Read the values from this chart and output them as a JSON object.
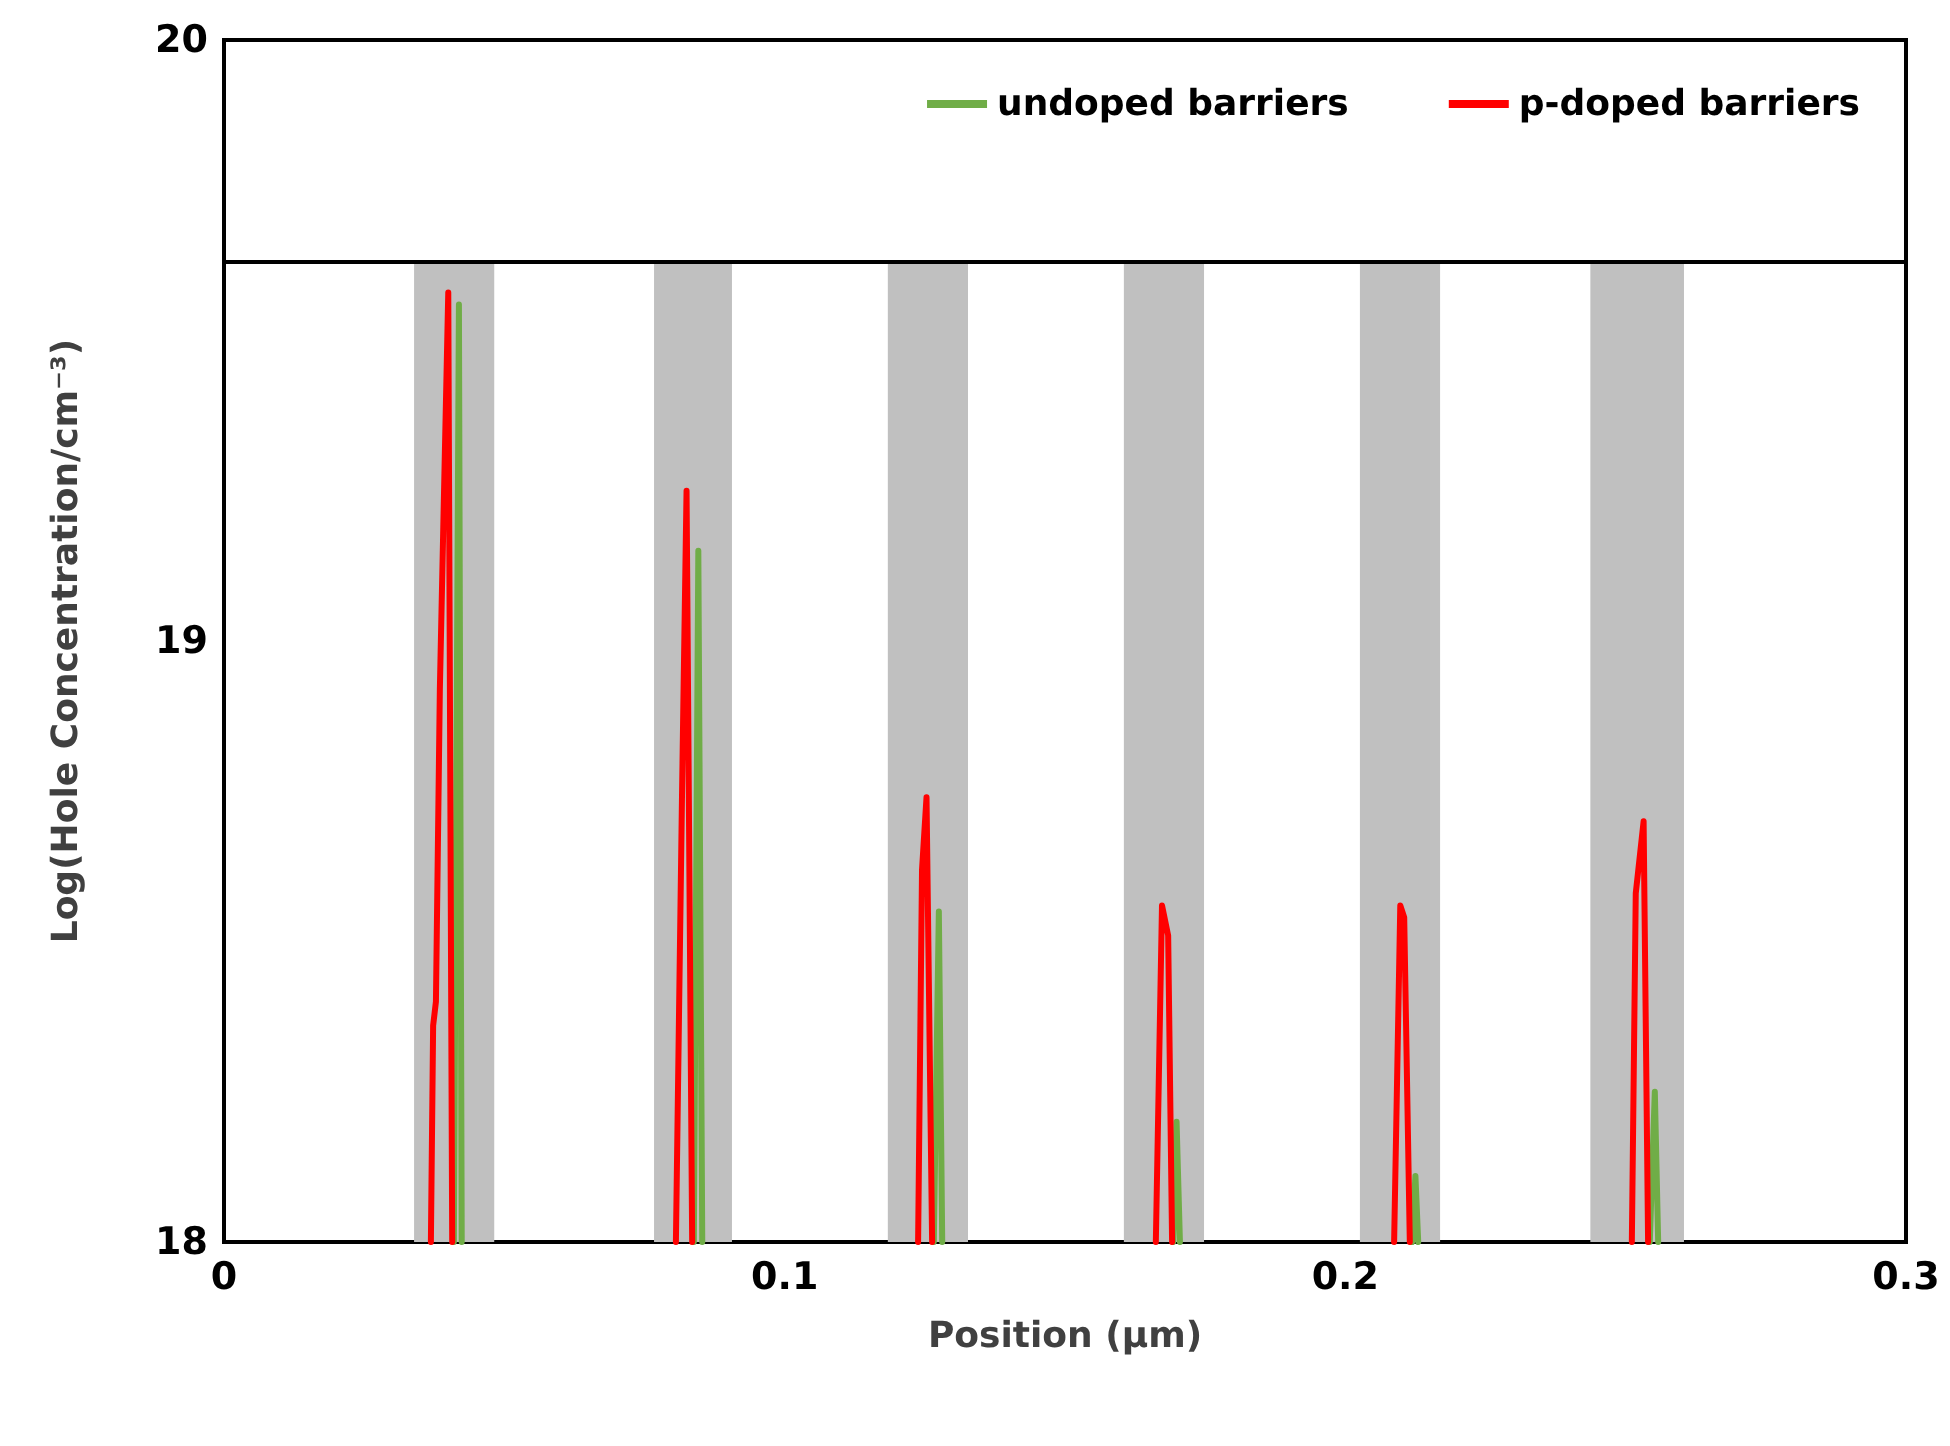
{
  "chart_data": {
    "type": "line",
    "xlabel": "Position (µm)",
    "ylabel": "Log(Hole Concentration/cm⁻³)",
    "xlim": [
      0,
      0.3
    ],
    "xticks": [
      0,
      0.1,
      0.2,
      0.3
    ],
    "ylim": [
      18,
      20
    ],
    "yticks": [
      18,
      19,
      20
    ],
    "grid": false,
    "legend": "top right",
    "marker": "none",
    "line_style": "solid",
    "series": [
      {
        "name": "undoped barriers",
        "color": "#70ad47",
        "x": [
          0.041,
          0.0419,
          0.0424,
          0.063,
          0.0838,
          0.0846,
          0.0853,
          0.105,
          0.1266,
          0.1275,
          0.1281,
          0.147,
          0.1693,
          0.1699,
          0.1705,
          0.19,
          0.2119,
          0.2125,
          0.213,
          0.233,
          0.2543,
          0.2552,
          0.2558
        ],
        "values": [
          18,
          19.56,
          18,
          null,
          18,
          19.15,
          18,
          null,
          18,
          18.55,
          18,
          null,
          18,
          18.2,
          18,
          null,
          18,
          18.11,
          18,
          null,
          18,
          18.25,
          18
        ]
      },
      {
        "name": "p-doped barriers",
        "color": "#ff0000",
        "x": [
          0.0369,
          0.0373,
          0.0378,
          0.0385,
          0.04,
          0.0407,
          0.062,
          0.0806,
          0.0817,
          0.0825,
          0.0835,
          0.104,
          0.1238,
          0.1245,
          0.1253,
          0.1263,
          0.146,
          0.1662,
          0.1673,
          0.1684,
          0.1691,
          0.19,
          0.2087,
          0.2098,
          0.2105,
          0.2115,
          0.232,
          0.2511,
          0.2518,
          0.2532,
          0.254
        ],
        "values": [
          18,
          18.36,
          18.4,
          18.92,
          19.58,
          18,
          null,
          18,
          18.75,
          19.25,
          18,
          null,
          18,
          18.62,
          18.74,
          18,
          null,
          18,
          18.56,
          18.51,
          18,
          null,
          18,
          18.56,
          18.54,
          18,
          null,
          18,
          18.58,
          18.7,
          18
        ]
      }
    ],
    "ref_lines": [
      {
        "axis": "y",
        "value": 19.63,
        "color": "#000000"
      }
    ],
    "bands": [
      {
        "axis": "x",
        "from": 0.0339,
        "to": 0.0482,
        "color": "#c0c0c0"
      },
      {
        "axis": "x",
        "from": 0.0767,
        "to": 0.0906,
        "color": "#c0c0c0"
      },
      {
        "axis": "x",
        "from": 0.1184,
        "to": 0.1327,
        "color": "#c0c0c0"
      },
      {
        "axis": "x",
        "from": 0.1605,
        "to": 0.1748,
        "color": "#c0c0c0"
      },
      {
        "axis": "x",
        "from": 0.2026,
        "to": 0.2169,
        "color": "#c0c0c0"
      },
      {
        "axis": "x",
        "from": 0.2437,
        "to": 0.2604,
        "color": "#c0c0c0"
      }
    ]
  }
}
